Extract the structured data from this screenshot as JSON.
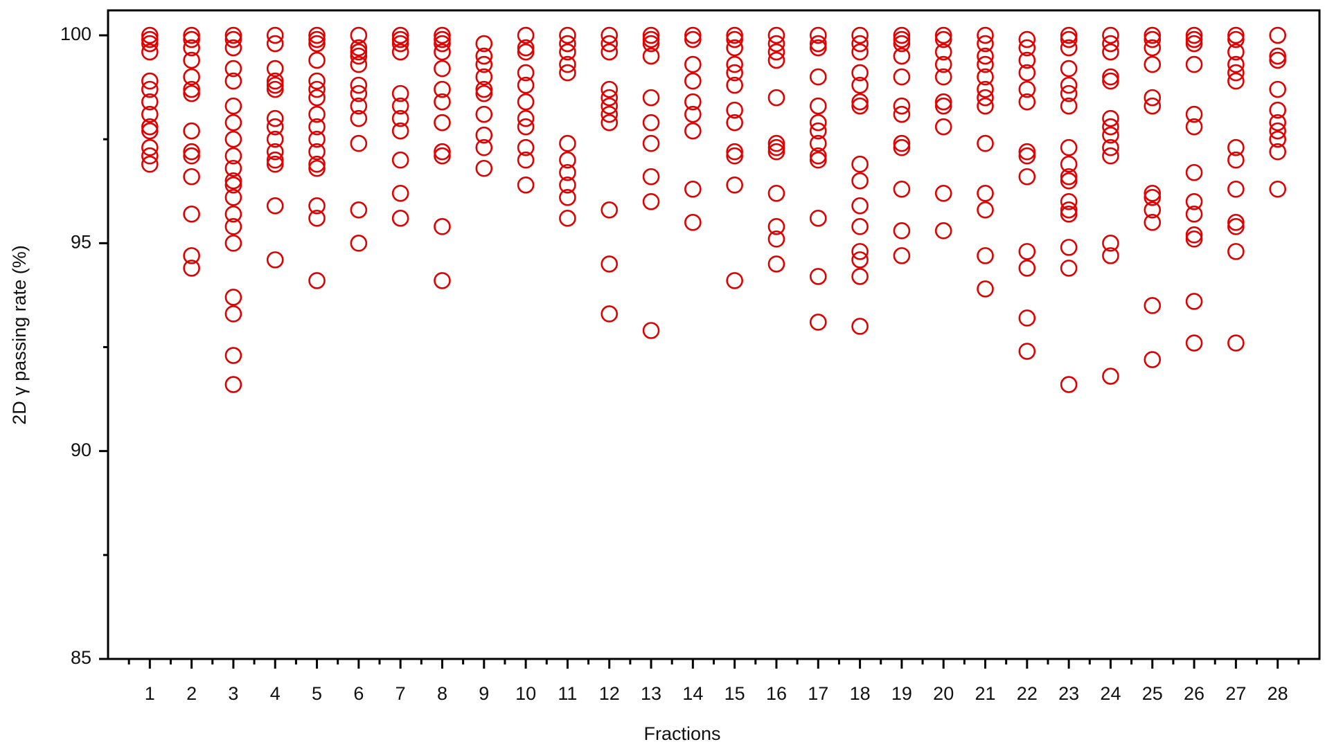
{
  "chart_data": {
    "type": "scatter",
    "x_label": "Fractions",
    "y_label": "2D γ passing rate (%)",
    "color": "#e00000",
    "xlim": [
      0,
      29
    ],
    "ylim": [
      85,
      100.6
    ],
    "xticks": [
      1,
      2,
      3,
      4,
      5,
      6,
      7,
      8,
      9,
      10,
      11,
      12,
      13,
      14,
      15,
      16,
      17,
      18,
      19,
      20,
      21,
      22,
      23,
      24,
      25,
      26,
      27,
      28
    ],
    "minor_xticks": [
      0.5,
      1.5,
      2.5,
      3.5,
      4.5,
      5.5,
      6.5,
      7.5,
      8.5,
      9.5,
      10.5,
      11.5,
      12.5,
      13.5,
      14.5,
      15.5,
      16.5,
      17.5,
      18.5,
      19.5,
      20.5,
      21.5,
      22.5,
      23.5,
      24.5,
      25.5,
      26.5,
      27.5,
      28.5
    ],
    "yticks": [
      85,
      90,
      95,
      100
    ],
    "minor_yticks": [
      87.5,
      92.5,
      97.5
    ],
    "x": [
      1,
      2,
      3,
      4,
      5,
      6,
      7,
      8,
      9,
      10,
      11,
      12,
      13,
      14,
      15,
      16,
      17,
      18,
      19,
      20,
      21,
      22,
      23,
      24,
      25,
      26,
      27,
      28
    ],
    "values": [
      [
        100,
        99.9,
        99.8,
        99.6,
        98.9,
        98.7,
        98.4,
        98.1,
        97.8,
        97.7,
        97.3,
        97.1,
        96.9
      ],
      [
        100,
        99.9,
        99.7,
        99.4,
        99.0,
        98.7,
        98.6,
        97.7,
        97.2,
        97.1,
        96.6,
        95.7,
        94.7,
        94.4
      ],
      [
        100,
        99.9,
        99.7,
        99.2,
        98.9,
        98.3,
        97.9,
        97.5,
        97.1,
        96.8,
        96.5,
        96.4,
        96.1,
        95.7,
        95.4,
        95.0,
        93.7,
        93.3,
        92.3,
        91.6
      ],
      [
        100,
        99.8,
        99.2,
        98.9,
        98.8,
        98.7,
        98.0,
        97.8,
        97.5,
        97.2,
        97.0,
        96.9,
        95.9,
        94.6
      ],
      [
        100,
        99.9,
        99.8,
        99.4,
        98.9,
        98.7,
        98.5,
        98.1,
        97.8,
        97.5,
        97.2,
        96.9,
        96.8,
        95.9,
        95.6,
        94.1
      ],
      [
        100,
        99.7,
        99.6,
        99.5,
        99.3,
        98.8,
        98.6,
        98.3,
        98.0,
        97.4,
        95.8,
        95.0
      ],
      [
        100,
        99.9,
        99.8,
        99.6,
        98.6,
        98.3,
        98.0,
        97.7,
        97.0,
        96.2,
        95.6
      ],
      [
        100,
        99.9,
        99.8,
        99.6,
        99.2,
        98.7,
        98.4,
        97.9,
        97.2,
        97.1,
        95.4,
        94.1
      ],
      [
        99.8,
        99.5,
        99.3,
        99.0,
        98.7,
        98.6,
        98.1,
        97.6,
        97.3,
        96.8
      ],
      [
        100,
        99.7,
        99.6,
        99.1,
        98.8,
        98.4,
        98.0,
        97.8,
        97.3,
        97.0,
        96.4
      ],
      [
        100,
        99.8,
        99.6,
        99.3,
        99.1,
        97.4,
        97.0,
        96.7,
        96.4,
        96.1,
        95.6
      ],
      [
        100,
        99.8,
        99.6,
        98.7,
        98.5,
        98.3,
        98.1,
        97.9,
        95.8,
        94.5,
        93.3
      ],
      [
        100,
        99.9,
        99.8,
        99.5,
        98.5,
        97.9,
        97.4,
        96.6,
        96.0,
        92.9
      ],
      [
        100,
        99.9,
        99.3,
        98.9,
        98.4,
        98.1,
        97.7,
        96.3,
        95.5
      ],
      [
        100,
        99.9,
        99.7,
        99.3,
        99.1,
        98.8,
        98.2,
        97.9,
        97.2,
        97.1,
        96.4,
        94.1
      ],
      [
        100,
        99.8,
        99.6,
        99.4,
        98.5,
        97.4,
        97.3,
        97.2,
        96.2,
        95.4,
        95.1,
        94.5
      ],
      [
        100,
        99.8,
        99.7,
        99.0,
        98.3,
        97.9,
        97.7,
        97.4,
        97.1,
        97.0,
        95.6,
        94.2,
        93.1
      ],
      [
        100,
        99.8,
        99.6,
        99.1,
        98.8,
        98.4,
        98.3,
        96.9,
        96.5,
        95.9,
        95.4,
        94.8,
        94.6,
        94.2,
        93.0
      ],
      [
        100,
        99.9,
        99.8,
        99.5,
        99.0,
        98.3,
        98.1,
        97.4,
        97.3,
        96.3,
        95.3,
        94.7
      ],
      [
        100,
        99.9,
        99.6,
        99.3,
        99.0,
        98.4,
        98.3,
        97.8,
        96.2,
        95.3
      ],
      [
        100,
        99.8,
        99.5,
        99.3,
        99.0,
        98.7,
        98.5,
        98.3,
        97.4,
        96.2,
        95.8,
        94.7,
        93.9
      ],
      [
        99.9,
        99.7,
        99.4,
        99.1,
        98.7,
        98.4,
        97.2,
        97.1,
        96.6,
        94.8,
        94.4,
        93.2,
        92.4
      ],
      [
        100,
        99.9,
        99.7,
        99.2,
        98.8,
        98.6,
        98.3,
        97.3,
        96.9,
        96.6,
        96.5,
        96.0,
        95.8,
        95.7,
        94.9,
        94.4,
        91.6
      ],
      [
        100,
        99.8,
        99.6,
        99.0,
        98.9,
        98.0,
        97.8,
        97.6,
        97.3,
        97.1,
        95.0,
        94.7,
        91.8
      ],
      [
        100,
        99.9,
        99.7,
        99.3,
        98.5,
        98.3,
        96.2,
        96.1,
        95.8,
        95.5,
        93.5,
        92.2
      ],
      [
        100,
        99.9,
        99.8,
        99.3,
        98.1,
        97.8,
        96.7,
        96.0,
        95.7,
        95.2,
        95.1,
        93.6,
        92.6
      ],
      [
        100,
        99.9,
        99.6,
        99.3,
        99.1,
        98.9,
        97.3,
        97.0,
        96.3,
        95.5,
        95.4,
        94.8,
        92.6
      ],
      [
        100,
        99.5,
        99.4,
        98.7,
        98.2,
        97.9,
        97.7,
        97.5,
        97.2,
        96.3
      ]
    ]
  }
}
